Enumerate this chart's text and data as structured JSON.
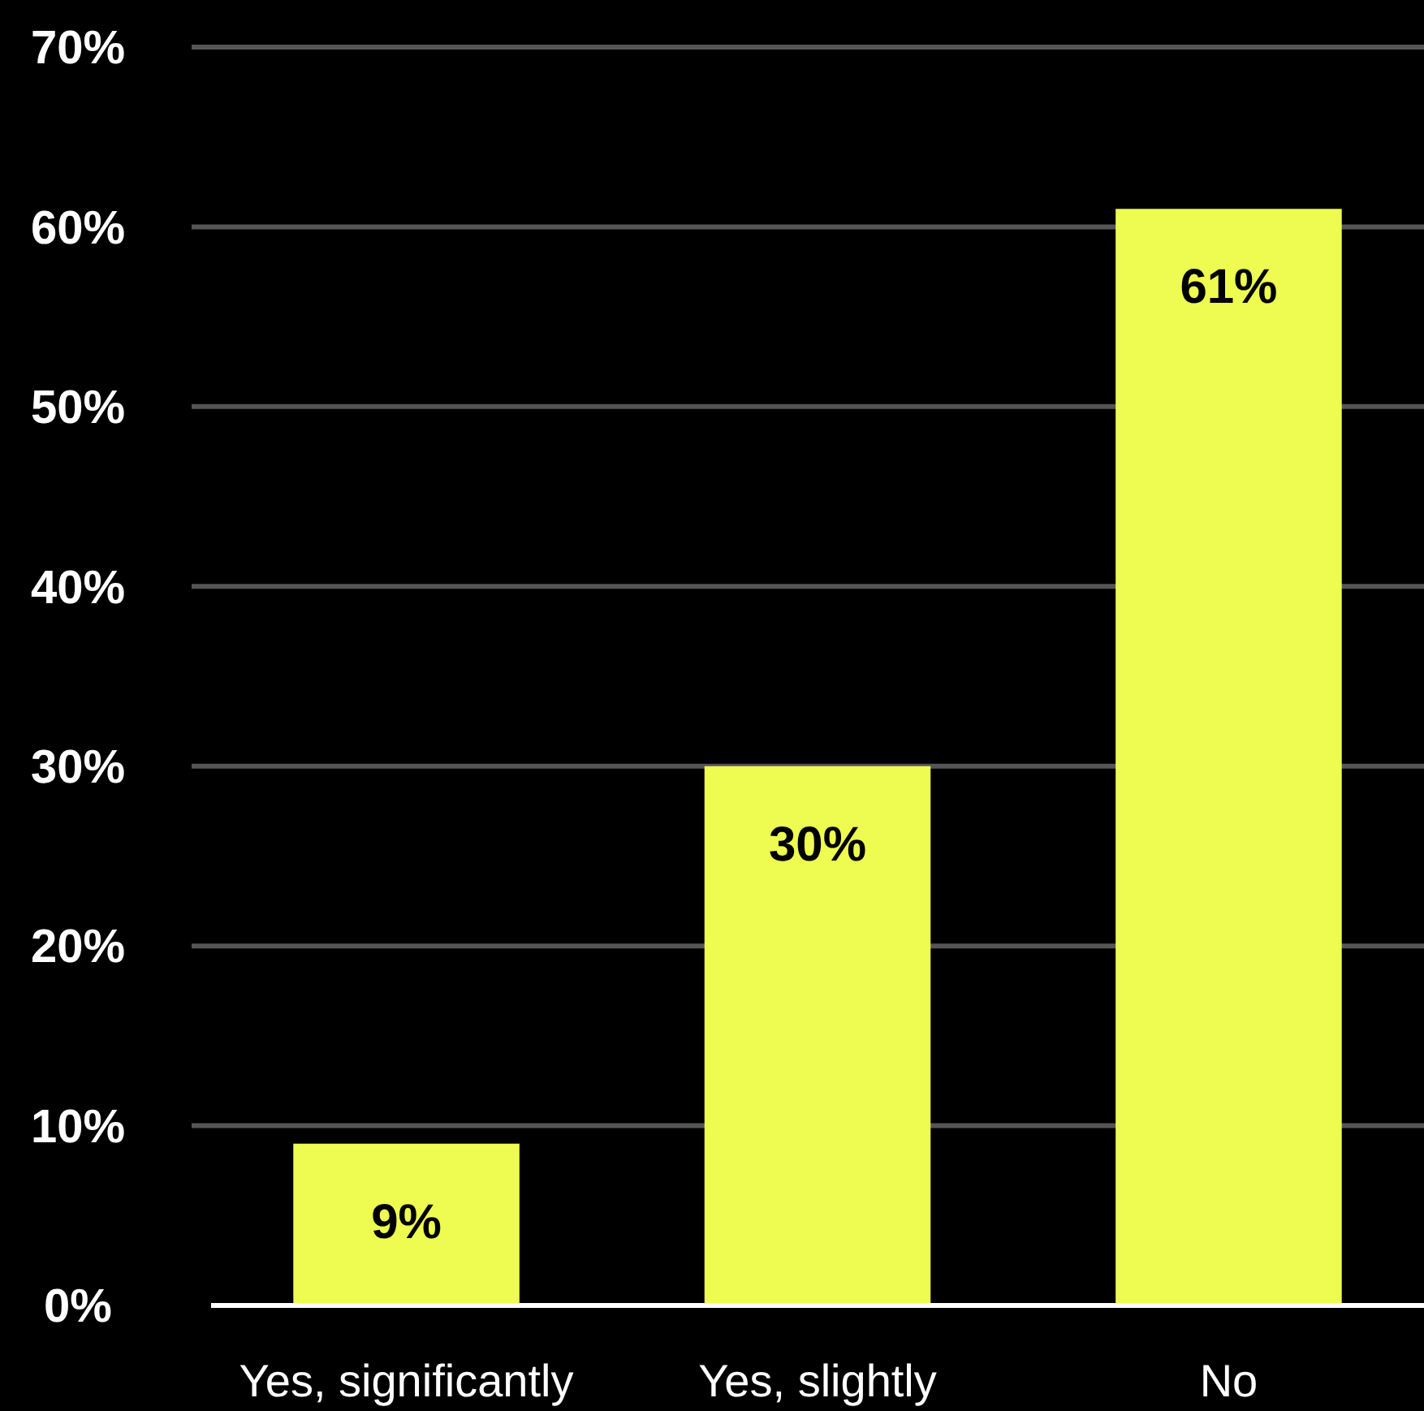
{
  "chart_data": {
    "type": "bar",
    "categories": [
      "Yes, significantly",
      "Yes, slightly",
      "No"
    ],
    "values": [
      9,
      30,
      61
    ],
    "color": "#eefb50",
    "value_labels": [
      "9%",
      "30%",
      "61%"
    ],
    "ylim": [
      0,
      70
    ],
    "yticks": [
      {
        "value": 0,
        "label": "0%"
      },
      {
        "value": 10,
        "label": "10%"
      },
      {
        "value": 20,
        "label": "20%"
      },
      {
        "value": 30,
        "label": "30%"
      },
      {
        "value": 40,
        "label": "40%"
      },
      {
        "value": 50,
        "label": "50%"
      },
      {
        "value": 60,
        "label": "60%"
      },
      {
        "value": 70,
        "label": "70%"
      }
    ],
    "grid": "y"
  }
}
